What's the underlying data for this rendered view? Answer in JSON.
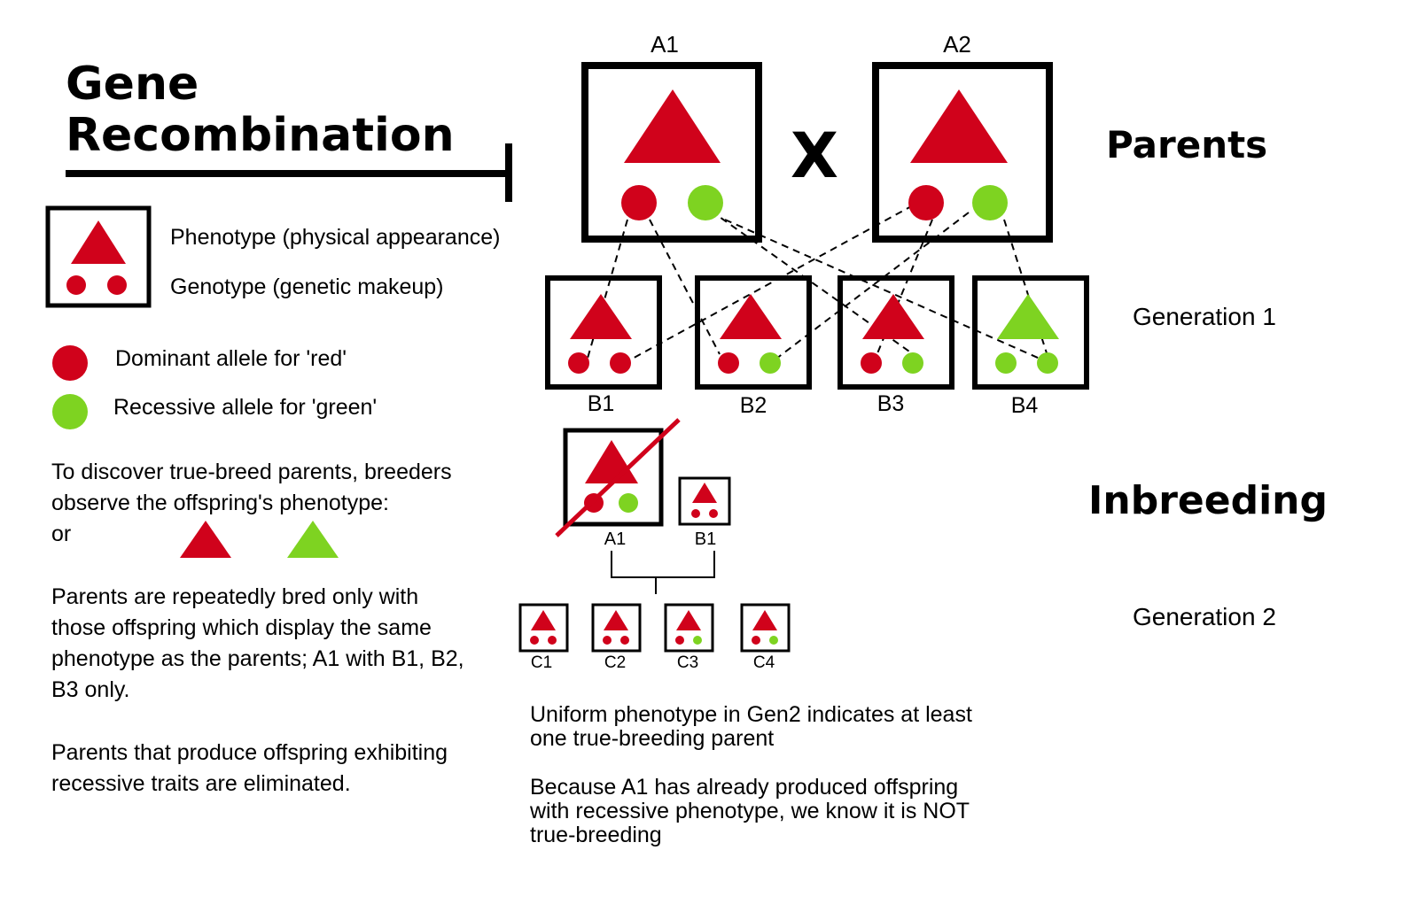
{
  "colors": {
    "red": "#d0021b",
    "green": "#7ed321",
    "black": "#000000",
    "background": "#ffffff"
  },
  "title": {
    "line1": "Gene",
    "line2": "Recombination"
  },
  "legend": {
    "phenotype_label": "Phenotype (physical appearance)",
    "genotype_label": "Genotype (genetic makeup)",
    "dominant_label": "Dominant allele for 'red'",
    "recessive_label": "Recessive allele for 'green'"
  },
  "notes": {
    "discover_line1": "To discover true-breed parents, breeders",
    "discover_line2": "observe the offspring's phenotype:",
    "discover_or": "or",
    "repeat_line1": "Parents are repeatedly bred only with",
    "repeat_line2": "those offspring which display the same",
    "repeat_line3": "phenotype as the parents; A1 with B1, B2,",
    "repeat_line4": "B3 only.",
    "elim_line1": "Parents that produce offspring exhibiting",
    "elim_line2": "recessive traits are eliminated."
  },
  "sections": {
    "parents": "Parents",
    "generation1": "Generation 1",
    "inbreeding": "Inbreeding",
    "generation2": "Generation 2"
  },
  "cross_symbol": "X",
  "parents": [
    {
      "label": "A1",
      "phenotype": "red",
      "alleles": [
        "red",
        "green"
      ]
    },
    {
      "label": "A2",
      "phenotype": "red",
      "alleles": [
        "red",
        "green"
      ]
    }
  ],
  "generation1": [
    {
      "label": "B1",
      "phenotype": "red",
      "alleles": [
        "red",
        "red"
      ]
    },
    {
      "label": "B2",
      "phenotype": "red",
      "alleles": [
        "red",
        "green"
      ]
    },
    {
      "label": "B3",
      "phenotype": "red",
      "alleles": [
        "red",
        "green"
      ]
    },
    {
      "label": "B4",
      "phenotype": "green",
      "alleles": [
        "green",
        "green"
      ]
    }
  ],
  "inbreeding_pair": [
    {
      "label": "A1",
      "phenotype": "red",
      "alleles": [
        "red",
        "green"
      ],
      "crossed_out": true
    },
    {
      "label": "B1",
      "phenotype": "red",
      "alleles": [
        "red",
        "red"
      ],
      "crossed_out": false
    }
  ],
  "generation2": [
    {
      "label": "C1",
      "phenotype": "red",
      "alleles": [
        "red",
        "red"
      ]
    },
    {
      "label": "C2",
      "phenotype": "red",
      "alleles": [
        "red",
        "red"
      ]
    },
    {
      "label": "C3",
      "phenotype": "red",
      "alleles": [
        "red",
        "green"
      ]
    },
    {
      "label": "C4",
      "phenotype": "red",
      "alleles": [
        "red",
        "green"
      ]
    }
  ],
  "conclusions": {
    "uniform_line1": "Uniform phenotype in Gen2 indicates at least",
    "uniform_line2": "one true-breeding parent",
    "because_line1": "Because A1 has already produced offspring",
    "because_line2": "with recessive phenotype, we know it is NOT",
    "because_line3": "true-breeding"
  }
}
